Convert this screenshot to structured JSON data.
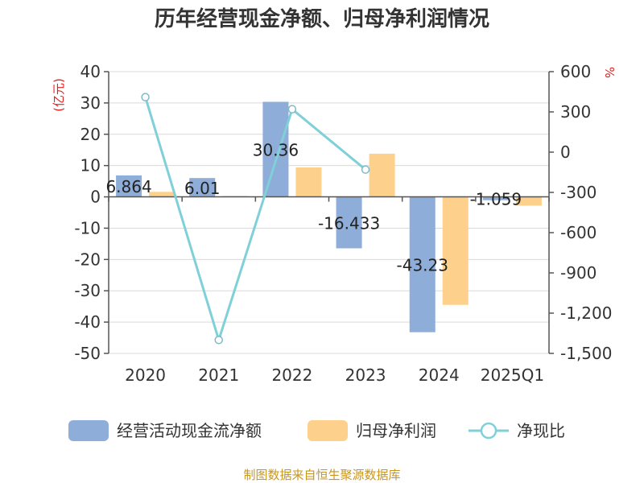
{
  "chart_data": {
    "type": "bar+line",
    "title": "历年经营现金净额、归母净利润情况",
    "categories": [
      "2020",
      "2021",
      "2022",
      "2023",
      "2024",
      "2025Q1"
    ],
    "series": [
      {
        "name": "经营活动现金流净额",
        "type": "bar",
        "axis": "left",
        "color": "#8eadd8",
        "values": [
          6.864,
          6.01,
          30.36,
          -16.433,
          -43.23,
          -1.059
        ]
      },
      {
        "name": "归母净利润",
        "type": "bar",
        "axis": "left",
        "color": "#fdd08c",
        "values": [
          1.6,
          0.3,
          9.4,
          13.8,
          -34.5,
          -2.8
        ]
      },
      {
        "name": "净现比",
        "type": "line",
        "axis": "right",
        "color": "#7fd0d8",
        "values": [
          410,
          -1400,
          320,
          -130,
          null,
          null
        ]
      }
    ],
    "data_labels": [
      "6.864",
      "6.01",
      "30.36",
      "-16.433",
      "-43.23",
      "-1.059"
    ],
    "y_left": {
      "unit": "(亿元)",
      "min": -50,
      "max": 40,
      "ticks": [
        "40",
        "30",
        "20",
        "10",
        "0",
        "-10",
        "-20",
        "-30",
        "-40",
        "-50"
      ]
    },
    "y_right": {
      "unit": "%",
      "min": -1500,
      "max": 600,
      "ticks": [
        "600",
        "300",
        "0",
        "-300",
        "-600",
        "-900",
        "-1,200",
        "-1,500"
      ]
    },
    "legend": [
      "经营活动现金流净额",
      "归母净利润",
      "净现比"
    ],
    "source": "制图数据来自恒生聚源数据库"
  }
}
